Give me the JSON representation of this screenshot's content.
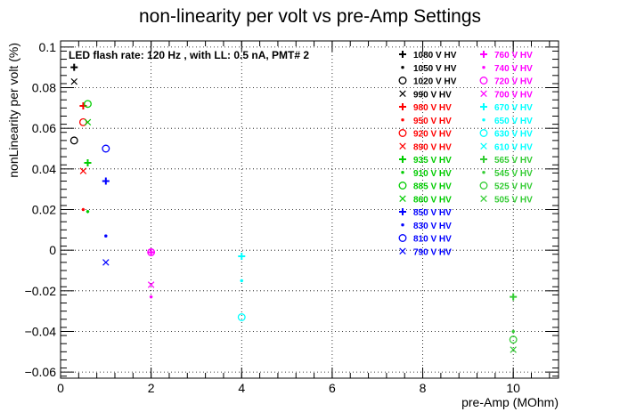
{
  "chart_data": {
    "type": "scatter",
    "title": "non-linearity per volt vs pre-Amp Settings",
    "xlabel": "pre-Amp (MOhm)",
    "ylabel": "nonLinearity per volt (%)",
    "annotation": "LED flash rate: 120 Hz , with LL: 0.5 nA, PMT# 2",
    "xlim": [
      0,
      11
    ],
    "ylim": [
      -0.063,
      0.103
    ],
    "xticks": [
      0,
      2,
      4,
      6,
      8,
      10
    ],
    "xtick_labels": [
      "0",
      "2",
      "4",
      "6",
      "8",
      "10"
    ],
    "yticks": [
      -0.06,
      -0.04,
      -0.02,
      0,
      0.02,
      0.04,
      0.06,
      0.08,
      0.1
    ],
    "ytick_labels": [
      "−0.06",
      "−0.04",
      "−0.02",
      "0",
      "0.02",
      "0.04",
      "0.06",
      "0.08",
      "0.1"
    ],
    "grid": true,
    "legend_position": "top-right",
    "series": [
      {
        "name": "1080 V HV",
        "marker": "plus",
        "color": "#000000",
        "points": [
          [
            0.3,
            0.09
          ]
        ]
      },
      {
        "name": "1050 V HV",
        "marker": "star",
        "color": "#000000",
        "points": []
      },
      {
        "name": "1020 V HV",
        "marker": "circle",
        "color": "#000000",
        "points": [
          [
            0.3,
            0.054
          ]
        ]
      },
      {
        "name": "990 V HV",
        "marker": "cross",
        "color": "#000000",
        "points": [
          [
            0.3,
            0.083
          ]
        ]
      },
      {
        "name": "980 V HV",
        "marker": "plus",
        "color": "#ff0000",
        "points": [
          [
            0.5,
            0.071
          ]
        ]
      },
      {
        "name": "950 V HV",
        "marker": "star",
        "color": "#ff0000",
        "points": [
          [
            0.5,
            0.02
          ]
        ]
      },
      {
        "name": "920 V HV",
        "marker": "circle",
        "color": "#ff0000",
        "points": [
          [
            0.5,
            0.063
          ]
        ]
      },
      {
        "name": "890 V HV",
        "marker": "cross",
        "color": "#ff0000",
        "points": [
          [
            0.5,
            0.039
          ]
        ]
      },
      {
        "name": "935 V HV",
        "marker": "plus",
        "color": "#00cc00",
        "points": [
          [
            0.6,
            0.043
          ]
        ]
      },
      {
        "name": "910 V HV",
        "marker": "star",
        "color": "#00cc00",
        "points": [
          [
            0.6,
            0.019
          ]
        ]
      },
      {
        "name": "885 V HV",
        "marker": "circle",
        "color": "#00cc00",
        "points": [
          [
            0.6,
            0.072
          ]
        ]
      },
      {
        "name": "860 V HV",
        "marker": "cross",
        "color": "#00cc00",
        "points": [
          [
            0.6,
            0.063
          ]
        ]
      },
      {
        "name": "850 V HV",
        "marker": "plus",
        "color": "#0000ff",
        "points": [
          [
            1.0,
            0.034
          ]
        ]
      },
      {
        "name": "830 V HV",
        "marker": "star",
        "color": "#0000ff",
        "points": [
          [
            1.0,
            0.007
          ]
        ]
      },
      {
        "name": "810 V HV",
        "marker": "circle",
        "color": "#0000ff",
        "points": [
          [
            1.0,
            0.05
          ]
        ]
      },
      {
        "name": "790 V HV",
        "marker": "cross",
        "color": "#0000ff",
        "points": [
          [
            1.0,
            -0.006
          ]
        ]
      },
      {
        "name": "760 V HV",
        "marker": "plus",
        "color": "#ff00ff",
        "points": [
          [
            2.0,
            -0.001
          ]
        ]
      },
      {
        "name": "740 V HV",
        "marker": "star",
        "color": "#ff00ff",
        "points": [
          [
            2.0,
            -0.023
          ]
        ]
      },
      {
        "name": "720 V HV",
        "marker": "circle",
        "color": "#ff00ff",
        "points": [
          [
            2.0,
            -0.001
          ]
        ]
      },
      {
        "name": "700 V HV",
        "marker": "cross",
        "color": "#ff00ff",
        "points": [
          [
            2.0,
            -0.017
          ]
        ]
      },
      {
        "name": "670 V HV",
        "marker": "plus",
        "color": "#00ffff",
        "points": [
          [
            4.0,
            -0.003
          ]
        ]
      },
      {
        "name": "650 V HV",
        "marker": "star",
        "color": "#00ffff",
        "points": [
          [
            4.0,
            -0.015
          ]
        ]
      },
      {
        "name": "630 V HV",
        "marker": "circle",
        "color": "#00ffff",
        "points": [
          [
            4.0,
            -0.033
          ]
        ]
      },
      {
        "name": "610 V HV",
        "marker": "cross",
        "color": "#00ffff",
        "points": []
      },
      {
        "name": "565 V HV",
        "marker": "plus",
        "color": "#33cc33",
        "points": [
          [
            10.0,
            -0.023
          ]
        ]
      },
      {
        "name": "545 V HV",
        "marker": "star",
        "color": "#33cc33",
        "points": [
          [
            10.0,
            -0.04
          ]
        ]
      },
      {
        "name": "525 V HV",
        "marker": "circle",
        "color": "#33cc33",
        "points": [
          [
            10.0,
            -0.044
          ]
        ]
      },
      {
        "name": "505 V HV",
        "marker": "cross",
        "color": "#33cc33",
        "points": [
          [
            10.0,
            -0.049
          ]
        ]
      }
    ]
  }
}
